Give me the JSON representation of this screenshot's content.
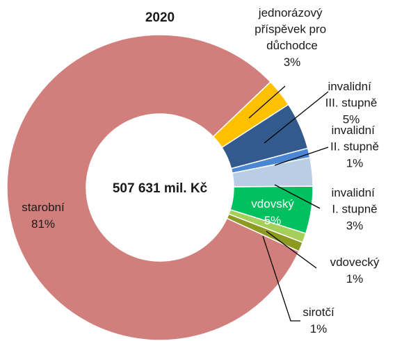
{
  "chart_data": {
    "type": "donut",
    "title": "2020",
    "center_label": "507 631 mil. Kč",
    "categories": [
      "starobní",
      "jednorázový příspěvek pro důchodce",
      "invalidní III. stupně",
      "invalidní II. stupně",
      "invalidní I. stupně",
      "vdovský",
      "vdovecký",
      "sirotčí"
    ],
    "values": [
      81,
      3,
      5,
      1,
      3,
      5,
      1,
      1
    ],
    "value_labels": [
      "81%",
      "3%",
      "5%",
      "1%",
      "3%",
      "5%",
      "1%",
      "1%"
    ],
    "colors": [
      "#d07f7c",
      "#ffc000",
      "#335a8c",
      "#4a86d4",
      "#b9cde5",
      "#00c060",
      "#a6cf5a",
      "#8d9a22"
    ]
  }
}
